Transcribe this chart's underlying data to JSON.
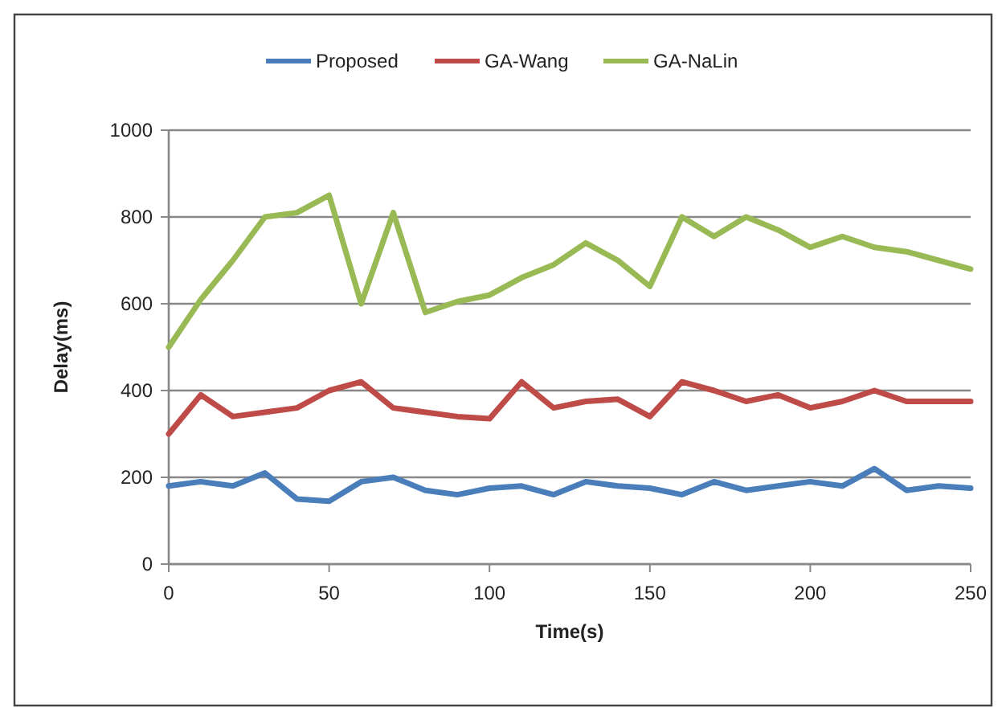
{
  "chart_data": {
    "type": "line",
    "xlabel": "Time(s)",
    "ylabel": "Delay(ms)",
    "x": [
      0,
      10,
      20,
      30,
      40,
      50,
      60,
      70,
      80,
      90,
      100,
      110,
      120,
      130,
      140,
      150,
      160,
      170,
      180,
      190,
      200,
      210,
      220,
      230,
      240,
      250
    ],
    "xlim": [
      0,
      250
    ],
    "xticks": [
      0,
      50,
      100,
      150,
      200,
      250
    ],
    "ylim": [
      0,
      1000
    ],
    "yticks": [
      0,
      200,
      400,
      600,
      800,
      1000
    ],
    "grid": "y",
    "legend": "top",
    "marker": "none",
    "line_style": "solid",
    "series": [
      {
        "name": "Proposed",
        "color": "#4a7ebb",
        "values": [
          180,
          190,
          180,
          210,
          150,
          145,
          190,
          200,
          170,
          160,
          175,
          180,
          160,
          190,
          180,
          175,
          160,
          190,
          170,
          180,
          190,
          180,
          220,
          170,
          180,
          175
        ]
      },
      {
        "name": "GA-Wang",
        "color": "#be4b48",
        "values": [
          300,
          390,
          340,
          350,
          360,
          400,
          420,
          360,
          350,
          340,
          335,
          420,
          360,
          375,
          380,
          340,
          420,
          400,
          375,
          390,
          360,
          375,
          400,
          375,
          375,
          375
        ]
      },
      {
        "name": "GA-NaLin",
        "color": "#98b954",
        "values": [
          500,
          610,
          700,
          800,
          810,
          850,
          600,
          810,
          580,
          605,
          620,
          660,
          690,
          740,
          700,
          640,
          800,
          755,
          800,
          770,
          730,
          755,
          730,
          720,
          700,
          680
        ]
      }
    ]
  }
}
